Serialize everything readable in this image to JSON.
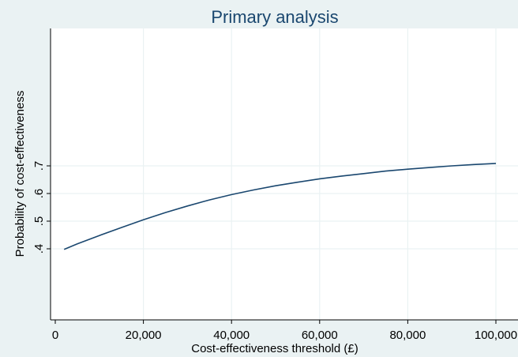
{
  "chart_data": {
    "type": "line",
    "title": "Primary analysis",
    "xlabel": "Cost-effectiveness threshold (£)",
    "ylabel": "Probability of cost-effectiveness",
    "xlim": [
      0,
      100000
    ],
    "ylim": [
      0,
      1
    ],
    "x_ticks": [
      0,
      20000,
      40000,
      60000,
      80000,
      100000
    ],
    "x_tick_labels": [
      "0",
      "20,000",
      "40,000",
      "60,000",
      "80,000",
      "100,000"
    ],
    "y_ticks": [
      0.4,
      0.5,
      0.6,
      0.7
    ],
    "y_tick_labels": [
      ".4",
      ".5",
      ".6",
      ".7"
    ],
    "grid": true,
    "series": [
      {
        "x": [
          2000,
          5000,
          10000,
          15000,
          20000,
          25000,
          30000,
          35000,
          40000,
          45000,
          50000,
          55000,
          60000,
          65000,
          70000,
          75000,
          80000,
          85000,
          90000,
          95000,
          100000
        ],
        "y": [
          0.398,
          0.418,
          0.448,
          0.477,
          0.505,
          0.531,
          0.555,
          0.577,
          0.596,
          0.613,
          0.628,
          0.641,
          0.653,
          0.663,
          0.672,
          0.681,
          0.688,
          0.694,
          0.7,
          0.705,
          0.709
        ]
      }
    ],
    "colors": {
      "background": "#eaf2f3",
      "plot_area": "#ffffff",
      "grid": "#eaf2f3",
      "line": "#1a476f",
      "title": "#1a476f"
    }
  }
}
